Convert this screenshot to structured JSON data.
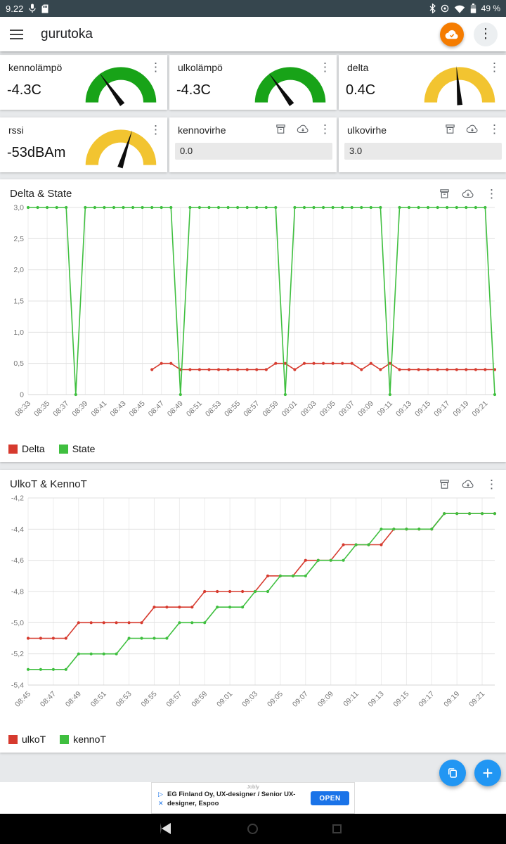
{
  "status_bar": {
    "time": "9.22",
    "battery": "49 %"
  },
  "app_bar": {
    "title": "gurutoka"
  },
  "icons": {
    "kebab": "⋮",
    "plus": "+",
    "adchoices": "▷",
    "close": "✕"
  },
  "cards": [
    {
      "type": "gauge",
      "title": "kennolämpö",
      "value": "-4.3C",
      "gauge_color": "#18a318",
      "needle_angle": -36
    },
    {
      "type": "gauge",
      "title": "ulkolämpö",
      "value": "-4.3C",
      "gauge_color": "#18a318",
      "needle_angle": -36
    },
    {
      "type": "gauge",
      "title": "delta",
      "value": "0.4C",
      "gauge_color": "#f2c430",
      "needle_angle": -5
    },
    {
      "type": "gauge",
      "title": "rssi",
      "value": "-53dBAm",
      "gauge_color": "#f2c430",
      "needle_angle": 18
    },
    {
      "type": "field",
      "title": "kennovirhe",
      "value": "0.0"
    },
    {
      "type": "field",
      "title": "ulkovirhe",
      "value": "3.0"
    }
  ],
  "chart_data": [
    {
      "type": "line",
      "title": "Delta & State",
      "ylim": [
        0,
        3
      ],
      "y_ticks": [
        0,
        0.5,
        1,
        1.5,
        2,
        2.5,
        3
      ],
      "y_tick_labels": [
        "0",
        "0,5",
        "1,0",
        "1,5",
        "2,0",
        "2,5",
        "3,0"
      ],
      "x": [
        "08:33",
        "08:34",
        "08:35",
        "08:36",
        "08:37",
        "08:38",
        "08:39",
        "08:40",
        "08:41",
        "08:42",
        "08:43",
        "08:44",
        "08:45",
        "08:46",
        "08:47",
        "08:48",
        "08:49",
        "08:50",
        "08:51",
        "08:52",
        "08:53",
        "08:54",
        "08:55",
        "08:56",
        "08:57",
        "08:58",
        "08:59",
        "09:00",
        "09:01",
        "09:02",
        "09:03",
        "09:04",
        "09:05",
        "09:06",
        "09:07",
        "09:08",
        "09:09",
        "09:10",
        "09:11",
        "09:12",
        "09:13",
        "09:14",
        "09:15",
        "09:16",
        "09:17",
        "09:18",
        "09:19",
        "09:20",
        "09:21",
        "09:22"
      ],
      "x_tick_labels": [
        "08:33",
        "08:35",
        "08:37",
        "08:39",
        "08:41",
        "08:43",
        "08:45",
        "08:47",
        "08:49",
        "08:51",
        "08:53",
        "08:55",
        "08:57",
        "08:59",
        "09:01",
        "09:03",
        "09:05",
        "09:07",
        "09:09",
        "09:11",
        "09:13",
        "09:15",
        "09:17",
        "09:19",
        "09:21"
      ],
      "series": [
        {
          "name": "Delta",
          "color": "#d63a2e",
          "values": [
            null,
            null,
            null,
            null,
            null,
            null,
            null,
            null,
            null,
            null,
            null,
            null,
            null,
            0.4,
            0.5,
            0.5,
            0.4,
            0.4,
            0.4,
            0.4,
            0.4,
            0.4,
            0.4,
            0.4,
            0.4,
            0.4,
            0.5,
            0.5,
            0.4,
            0.5,
            0.5,
            0.5,
            0.5,
            0.5,
            0.5,
            0.4,
            0.5,
            0.4,
            0.5,
            0.4,
            0.4,
            0.4,
            0.4,
            0.4,
            0.4,
            0.4,
            0.4,
            0.4,
            0.4,
            0.4
          ]
        },
        {
          "name": "State",
          "color": "#3fbf3f",
          "values": [
            3,
            3,
            3,
            3,
            3,
            0,
            3,
            3,
            3,
            3,
            3,
            3,
            3,
            3,
            3,
            3,
            0,
            3,
            3,
            3,
            3,
            3,
            3,
            3,
            3,
            3,
            3,
            0,
            3,
            3,
            3,
            3,
            3,
            3,
            3,
            3,
            3,
            3,
            0,
            3,
            3,
            3,
            3,
            3,
            3,
            3,
            3,
            3,
            3,
            0
          ]
        }
      ],
      "legend_position": "bottom-left",
      "grid": true
    },
    {
      "type": "line",
      "title": "UlkoT & KennoT",
      "ylim": [
        -5.4,
        -4.2
      ],
      "y_ticks": [
        -4.2,
        -4.4,
        -4.6,
        -4.8,
        -5.0,
        -5.2,
        -5.4
      ],
      "y_tick_labels": [
        "-4,2",
        "-4,4",
        "-4,6",
        "-4,8",
        "-5,0",
        "-5,2",
        "-5,4"
      ],
      "x": [
        "08:45",
        "08:46",
        "08:47",
        "08:48",
        "08:49",
        "08:50",
        "08:51",
        "08:52",
        "08:53",
        "08:54",
        "08:55",
        "08:56",
        "08:57",
        "08:58",
        "08:59",
        "09:00",
        "09:01",
        "09:02",
        "09:03",
        "09:04",
        "09:05",
        "09:06",
        "09:07",
        "09:08",
        "09:09",
        "09:10",
        "09:11",
        "09:12",
        "09:13",
        "09:14",
        "09:15",
        "09:16",
        "09:17",
        "09:18",
        "09:19",
        "09:20",
        "09:21",
        "09:22"
      ],
      "x_tick_labels": [
        "08:45",
        "08:47",
        "08:49",
        "08:51",
        "08:53",
        "08:55",
        "08:57",
        "08:59",
        "09:01",
        "09:03",
        "09:05",
        "09:07",
        "09:09",
        "09:11",
        "09:13",
        "09:15",
        "09:17",
        "09:19",
        "09:21"
      ],
      "series": [
        {
          "name": "ulkoT",
          "color": "#d63a2e",
          "values": [
            -5.1,
            -5.1,
            -5.1,
            -5.1,
            -5.0,
            -5.0,
            -5.0,
            -5.0,
            -5.0,
            -5.0,
            -4.9,
            -4.9,
            -4.9,
            -4.9,
            -4.8,
            -4.8,
            -4.8,
            -4.8,
            -4.8,
            -4.7,
            -4.7,
            -4.7,
            -4.6,
            -4.6,
            -4.6,
            -4.5,
            -4.5,
            -4.5,
            -4.5,
            -4.4,
            -4.4,
            -4.4,
            -4.4,
            -4.3,
            -4.3,
            -4.3,
            -4.3,
            -4.3
          ]
        },
        {
          "name": "kennoT",
          "color": "#3fbf3f",
          "values": [
            -5.3,
            -5.3,
            -5.3,
            -5.3,
            -5.2,
            -5.2,
            -5.2,
            -5.2,
            -5.1,
            -5.1,
            -5.1,
            -5.1,
            -5.0,
            -5.0,
            -5.0,
            -4.9,
            -4.9,
            -4.9,
            -4.8,
            -4.8,
            -4.7,
            -4.7,
            -4.7,
            -4.6,
            -4.6,
            -4.6,
            -4.5,
            -4.5,
            -4.4,
            -4.4,
            -4.4,
            -4.4,
            -4.4,
            -4.3,
            -4.3,
            -4.3,
            -4.3,
            -4.3
          ]
        }
      ],
      "legend_position": "bottom-left",
      "grid": true
    }
  ],
  "ad": {
    "network": "Jobly",
    "line1": "EG Finland Oy, UX-designer / Senior UX-",
    "line2": "designer, Espoo",
    "cta": "OPEN"
  }
}
